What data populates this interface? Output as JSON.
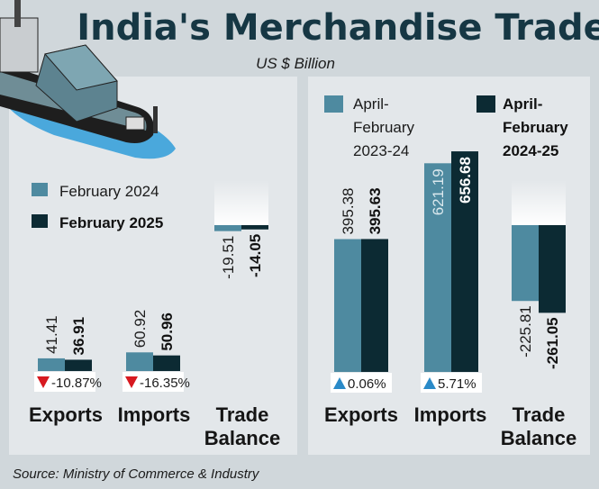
{
  "title": "India's Merchandise Trade",
  "subtitle": "US $ Billion",
  "source": "Source: Ministry of Commerce & Industry",
  "colors": {
    "series1": "#4e8aa0",
    "series2": "#0c2a33",
    "title": "#163744",
    "down": "#d71920",
    "up": "#2a8ac8"
  },
  "chart_data": [
    {
      "type": "bar",
      "categories": [
        "Exports",
        "Imports",
        "Trade Balance"
      ],
      "series": [
        {
          "name": "February 2024",
          "values": [
            41.41,
            60.92,
            -19.51
          ],
          "labels": [
            "41.41",
            "60.92",
            "-19.51"
          ]
        },
        {
          "name": "February 2025",
          "values": [
            36.91,
            50.96,
            -14.05
          ],
          "labels": [
            "36.91",
            "50.96",
            "-14.05"
          ]
        }
      ],
      "changes": [
        "-10.87%",
        "-16.35%",
        ""
      ],
      "change_dir": [
        "down",
        "down",
        ""
      ]
    },
    {
      "type": "bar",
      "categories": [
        "Exports",
        "Imports",
        "Trade Balance"
      ],
      "series": [
        {
          "name": "April-February 2023-24",
          "name_lines": [
            "April-",
            "February",
            "2023-24"
          ],
          "values": [
            395.38,
            621.19,
            -225.81
          ],
          "labels": [
            "395.38",
            "621.19",
            "-225.81"
          ]
        },
        {
          "name": "April-February 2024-25",
          "name_lines": [
            "April-",
            "February",
            "2024-25"
          ],
          "values": [
            395.63,
            656.68,
            -261.05
          ],
          "labels": [
            "395.63",
            "656.68",
            "-261.05"
          ]
        }
      ],
      "changes": [
        "0.06%",
        "5.71%",
        ""
      ],
      "change_dir": [
        "up",
        "up",
        ""
      ]
    }
  ]
}
